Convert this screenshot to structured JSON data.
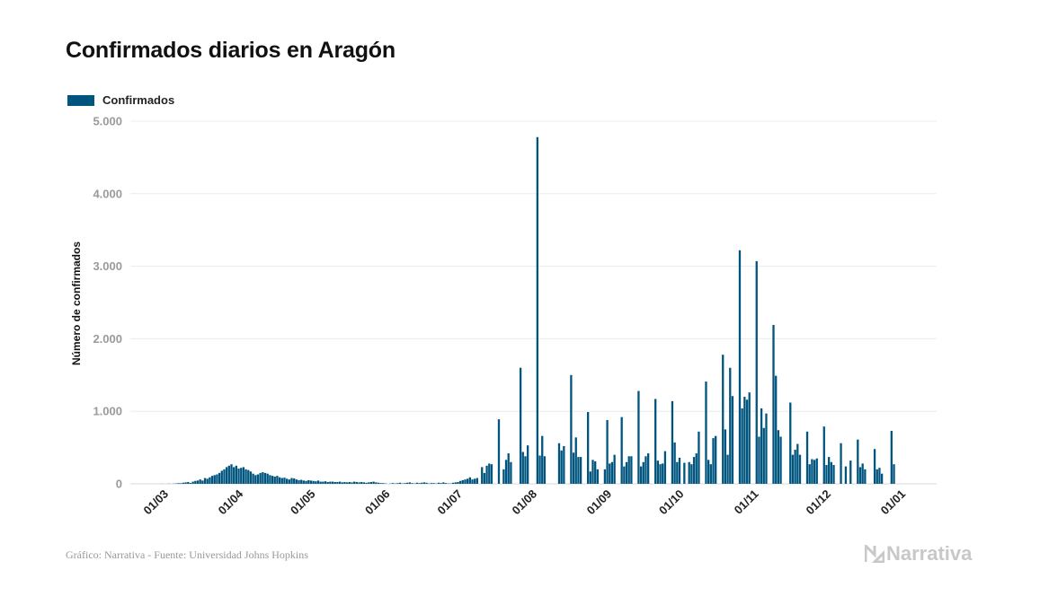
{
  "chart_data": {
    "type": "bar",
    "title": "Confirmados diarios en Aragón",
    "legend": [
      {
        "label": "Confirmados",
        "color": "#00557f"
      }
    ],
    "legend_position": "top-left",
    "xlabel": "",
    "ylabel": "Número de confirmados",
    "ylim": [
      0,
      5000
    ],
    "yticks": [
      0,
      1000,
      2000,
      3000,
      4000,
      5000
    ],
    "ytick_labels": [
      "0",
      "1.000",
      "2.000",
      "3.000",
      "4.000",
      "5.000"
    ],
    "grid": true,
    "start_date": "2020-02-26",
    "xtick_labels": [
      "01/03",
      "01/04",
      "01/05",
      "01/06",
      "01/07",
      "01/08",
      "01/09",
      "01/10",
      "01/11",
      "01/12",
      "01/01"
    ],
    "xtick_day_offsets": [
      4,
      35,
      65,
      96,
      126,
      157,
      188,
      218,
      249,
      279,
      310
    ],
    "series": [
      {
        "name": "Confirmados",
        "color": "#00557f",
        "values": [
          0,
          0,
          1,
          0,
          0,
          2,
          0,
          3,
          5,
          10,
          8,
          15,
          20,
          25,
          12,
          30,
          40,
          45,
          60,
          45,
          80,
          70,
          90,
          110,
          120,
          130,
          150,
          180,
          200,
          230,
          250,
          270,
          230,
          250,
          210,
          220,
          230,
          200,
          190,
          170,
          140,
          120,
          130,
          150,
          160,
          150,
          140,
          120,
          110,
          100,
          110,
          90,
          80,
          85,
          70,
          60,
          80,
          75,
          60,
          50,
          55,
          45,
          40,
          50,
          45,
          40,
          35,
          45,
          30,
          30,
          35,
          25,
          30,
          30,
          25,
          25,
          30,
          20,
          25,
          20,
          25,
          20,
          30,
          25,
          20,
          25,
          20,
          15,
          20,
          25,
          30,
          20,
          15,
          10,
          10,
          5,
          0,
          5,
          10,
          5,
          10,
          15,
          5,
          10,
          15,
          20,
          10,
          5,
          15,
          10,
          15,
          20,
          15,
          5,
          10,
          10,
          5,
          15,
          10,
          20,
          10,
          5,
          5,
          15,
          20,
          25,
          40,
          50,
          60,
          70,
          90,
          60,
          70,
          80,
          0,
          230,
          150,
          250,
          280,
          270,
          0,
          0,
          890,
          0,
          200,
          330,
          420,
          300,
          0,
          0,
          0,
          1600,
          440,
          380,
          530,
          0,
          0,
          0,
          4780,
          390,
          660,
          380,
          0,
          0,
          0,
          0,
          0,
          560,
          460,
          520,
          0,
          0,
          1500,
          430,
          640,
          370,
          370,
          0,
          0,
          990,
          170,
          330,
          310,
          200,
          0,
          0,
          200,
          880,
          280,
          300,
          400,
          0,
          0,
          920,
          240,
          300,
          380,
          380,
          0,
          0,
          1280,
          240,
          300,
          380,
          420,
          0,
          0,
          1170,
          320,
          270,
          280,
          450,
          0,
          0,
          1140,
          570,
          300,
          360,
          0,
          290,
          0,
          300,
          270,
          370,
          420,
          720,
          0,
          0,
          1410,
          330,
          270,
          630,
          660,
          0,
          0,
          1780,
          750,
          400,
          1600,
          1210,
          0,
          0,
          3220,
          1040,
          1200,
          1160,
          1260,
          0,
          0,
          3070,
          650,
          1040,
          770,
          970,
          0,
          0,
          2190,
          1490,
          740,
          650,
          0,
          0,
          0,
          1120,
          400,
          470,
          550,
          400,
          0,
          0,
          720,
          270,
          340,
          330,
          350,
          0,
          0,
          790,
          260,
          370,
          300,
          260,
          0,
          0,
          560,
          0,
          240,
          0,
          320,
          0,
          0,
          610,
          230,
          280,
          200,
          0,
          0,
          0,
          480,
          200,
          220,
          140,
          0,
          0,
          0,
          730,
          270,
          0,
          0,
          0
        ]
      }
    ]
  },
  "footer": {
    "source": "Gráfico: Narrativa - Fuente: Universidad Johns Hopkins",
    "logo": "Narrativa"
  }
}
